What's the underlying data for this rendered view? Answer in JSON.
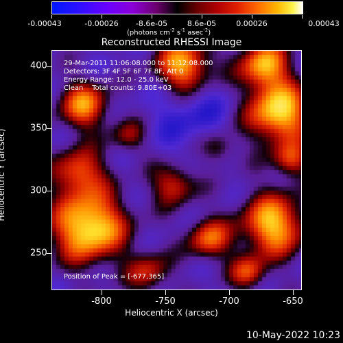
{
  "colorbar": {
    "labels": [
      "-0.00043",
      "-0.00026",
      "-8.6e-05",
      "8.6e-05",
      "0.00026",
      "0.00043"
    ],
    "units_prefix": "(photons cm",
    "units_exp1": "-2",
    "units_mid": " s",
    "units_exp2": "-1",
    "units_mid2": " asec",
    "units_exp3": "-2",
    "units_suffix": ")"
  },
  "title": "Reconstructed RHESSI Image",
  "info": {
    "line1": "29-Mar-2011 11:06:08.000 to 11:12:08.000",
    "line2": "Detectors: 3F 4F 5F 6F 7F 8F, Att 0",
    "line3": "Energy Range: 12.0 - 25.0 keV",
    "line4": "Clean    Total counts: 9.80E+03",
    "peak": "Position of Peak = [-677,365]"
  },
  "axes": {
    "xlabel": "Heliocentric X (arcsec)",
    "ylabel": "Heliocentric Y (arcsec)",
    "xticks": [
      "-800",
      "-750",
      "-700",
      "-650"
    ],
    "yticks": [
      "400",
      "350",
      "300",
      "250"
    ]
  },
  "timestamp": "10-May-2022 10:23"
}
